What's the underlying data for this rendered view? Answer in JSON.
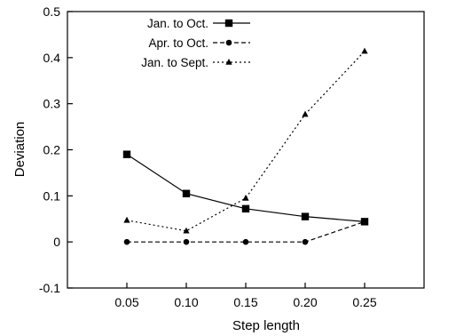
{
  "chart_data": {
    "type": "line",
    "title": "",
    "xlabel": "Step length",
    "ylabel": "Deviation",
    "x": [
      0.05,
      0.1,
      0.15,
      0.2,
      0.25
    ],
    "x_tick_labels": [
      "0.05",
      "0.10",
      "0.15",
      "0.20",
      "0.25"
    ],
    "xlim": [
      0.0,
      0.3
    ],
    "ylim": [
      -0.1,
      0.5
    ],
    "y_ticks": [
      -0.1,
      0,
      0.1,
      0.2,
      0.3,
      0.4,
      0.5
    ],
    "y_tick_labels": [
      "-0.1",
      "0",
      "0.1",
      "0.2",
      "0.3",
      "0.4",
      "0.5"
    ],
    "grid": false,
    "legend_position": "top-left",
    "series": [
      {
        "name": "Jan. to Oct.",
        "values": [
          0.19,
          0.105,
          0.072,
          0.055,
          0.044
        ],
        "marker": "square",
        "dash": "solid",
        "color": "#000000"
      },
      {
        "name": "Apr. to Oct.",
        "values": [
          0.0,
          0.0,
          0.0,
          0.0,
          0.044
        ],
        "marker": "circle",
        "dash": "dashed",
        "color": "#000000"
      },
      {
        "name": "Jan. to Sept.",
        "values": [
          0.047,
          0.024,
          0.095,
          0.277,
          0.414
        ],
        "marker": "triangle",
        "dash": "dotted",
        "color": "#000000"
      }
    ]
  }
}
